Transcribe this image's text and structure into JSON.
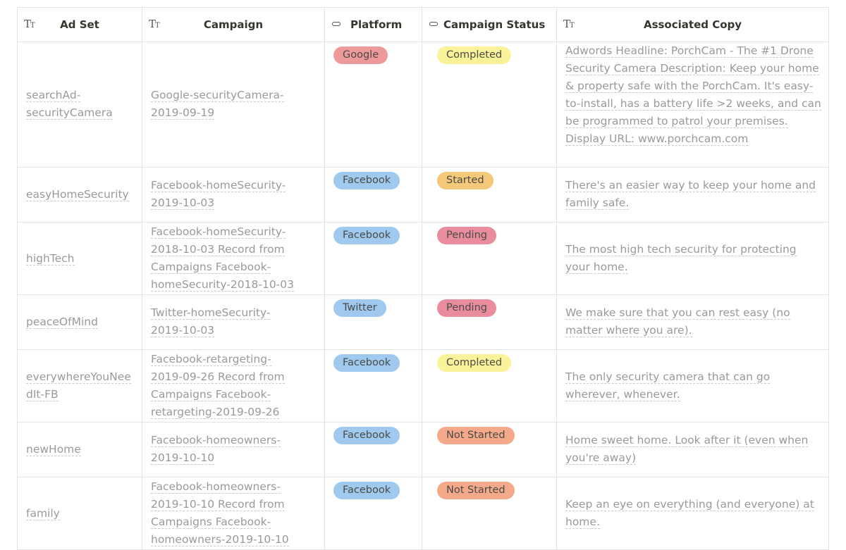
{
  "columns": [
    {
      "icon": "text-icon",
      "label": "Ad Set"
    },
    {
      "icon": "text-icon",
      "label": "Campaign"
    },
    {
      "icon": "select-icon",
      "label": "Platform"
    },
    {
      "icon": "select-icon",
      "label": "Campaign Status"
    },
    {
      "icon": "text-icon",
      "label": "Associated Copy"
    }
  ],
  "rows": [
    {
      "ad_set": "searchAd-securityCamera",
      "campaign": "Google-securityCamera-2019-09-19",
      "platform": "Google",
      "status": "Completed",
      "copy": "Adwords Headline: PorchCam - The #1 Drone Security Camera Description: Keep your home & property safe with the PorchCam. It's easy-to-install, has a battery life >2 weeks, and can be programmed to patrol your premises. Display URL: www.porchcam.com"
    },
    {
      "ad_set": "easyHomeSecurity",
      "campaign": "Facebook-homeSecurity-2019-10-03",
      "platform": "Facebook",
      "status": "Started",
      "copy": "There's an easier way to keep your home and family safe."
    },
    {
      "ad_set": "highTech",
      "campaign": "Facebook-homeSecurity-2018-10-03 Record from Campaigns Facebook-homeSecurity-2018-10-03",
      "platform": "Facebook",
      "status": "Pending",
      "copy": "The most high tech security for protecting your home."
    },
    {
      "ad_set": "peaceOfMind",
      "campaign": "Twitter-homeSecurity-2019-10-03",
      "platform": "Twitter",
      "status": "Pending",
      "copy": "We make sure that you can rest easy (no matter where you are)."
    },
    {
      "ad_set": "everywhereYouNeedIt-FB",
      "campaign": "Facebook-retargeting-2019-09-26 Record from Campaigns Facebook-retargeting-2019-09-26",
      "platform": "Facebook",
      "status": "Completed",
      "copy": "The only security camera that can go wherever, whenever."
    },
    {
      "ad_set": "newHome",
      "campaign": "Facebook-homeowners-2019-10-10",
      "platform": "Facebook",
      "status": "Not Started",
      "copy": "Home sweet home. Look after it (even when you're away)"
    },
    {
      "ad_set": "family",
      "campaign": "Facebook-homeowners-2019-10-10 Record from Campaigns Facebook-homeowners-2019-10-10",
      "platform": "Facebook",
      "status": "Not Started",
      "copy": "Keep an eye on everything (and everyone) at home."
    }
  ],
  "colors": {
    "google": "#ef9a9a",
    "facebook": "#9fc9ee",
    "twitter": "#9fc9ee",
    "completed": "#fbf39a",
    "started": "#f5c97a",
    "pending": "#e98d9e",
    "not_started": "#f5a98b"
  }
}
